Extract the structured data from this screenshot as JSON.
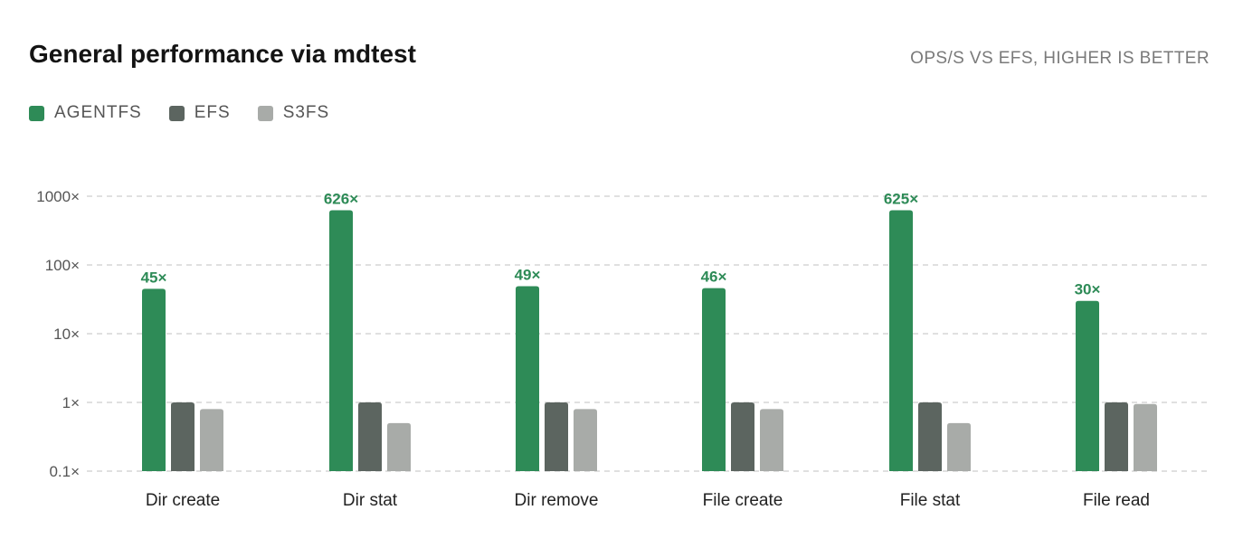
{
  "chart_data": {
    "type": "bar",
    "title": "General performance via mdtest",
    "subtitle": "OPS/S VS EFS, HIGHER IS BETTER",
    "categories": [
      "Dir create",
      "Dir stat",
      "Dir remove",
      "File create",
      "File stat",
      "File read"
    ],
    "yscale": "log",
    "ylim": [
      0.1,
      1000
    ],
    "ytick_values": [
      0.1,
      1,
      10,
      100,
      1000
    ],
    "ytick_labels": [
      "0.1×",
      "1×",
      "10×",
      "100×",
      "1000×"
    ],
    "grid": true,
    "legend_position": "top-left",
    "series": [
      {
        "name": "AGENTFS",
        "color": "#2e8b57",
        "values": [
          45,
          626,
          49,
          46,
          625,
          30
        ],
        "labels": [
          "45×",
          "626×",
          "49×",
          "46×",
          "625×",
          "30×"
        ]
      },
      {
        "name": "EFS",
        "color": "#5c6560",
        "values": [
          1,
          1,
          1,
          1,
          1,
          1
        ]
      },
      {
        "name": "S3FS",
        "color": "#a8aba8",
        "values": [
          0.8,
          0.5,
          0.8,
          0.8,
          0.5,
          0.95
        ]
      }
    ]
  }
}
